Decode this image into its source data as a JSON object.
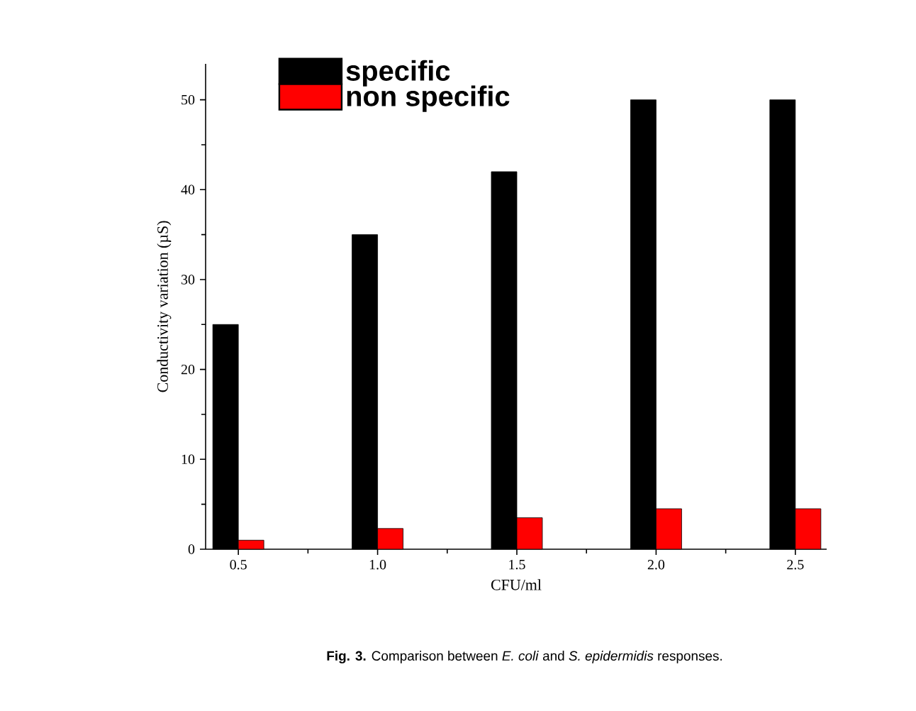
{
  "chart_data": {
    "type": "bar",
    "categories": [
      "0.5",
      "1.0",
      "1.5",
      "2.0",
      "2.5"
    ],
    "series": [
      {
        "name": "specific",
        "color": "#000000",
        "values": [
          25,
          35,
          42,
          50,
          50
        ]
      },
      {
        "name": "non specific",
        "color": "#ff0000",
        "values": [
          1.0,
          2.3,
          3.5,
          4.5,
          4.5
        ]
      }
    ],
    "xlabel": "CFU/ml",
    "ylabel": "Conductivity variation (µS)",
    "ylim": [
      0,
      54
    ],
    "yticks": [
      0,
      10,
      20,
      30,
      40,
      50
    ],
    "legend": "top left",
    "annotations": [
      "**Fig. 3.** Comparison between *E. coli* and *S. epidermidis* responses."
    ]
  }
}
